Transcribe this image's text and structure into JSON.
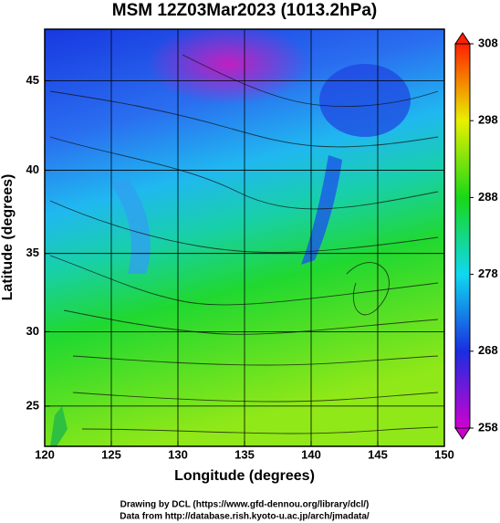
{
  "chart_data": {
    "type": "map",
    "title": "MSM 12Z03Mar2023 (1013.2hPa)",
    "x_label": "Longitude (degrees)",
    "y_label": "Latitude  (degrees)",
    "xlim": [
      120,
      150
    ],
    "xticks": [
      120,
      125,
      130,
      135,
      140,
      145,
      150
    ],
    "ylim": [
      22.2,
      47.7
    ],
    "yticks": [
      25,
      30,
      35,
      40,
      45
    ],
    "projection": "mercator",
    "grid": true,
    "colorbar": {
      "lim": [
        258,
        308
      ],
      "ticks": [
        258,
        268,
        278,
        288,
        298,
        308
      ],
      "colors": [
        "#d000d0",
        "#1a2ee0",
        "#10d8f0",
        "#18d818",
        "#e8f000",
        "#ff2000"
      ]
    },
    "credits": [
      "Drawing by DCL (https://www.gfd-dennou.org/library/dcl/)",
      "Data from http://database.rish.kyoto-u.ac.jp/arch/jmadata/"
    ]
  }
}
